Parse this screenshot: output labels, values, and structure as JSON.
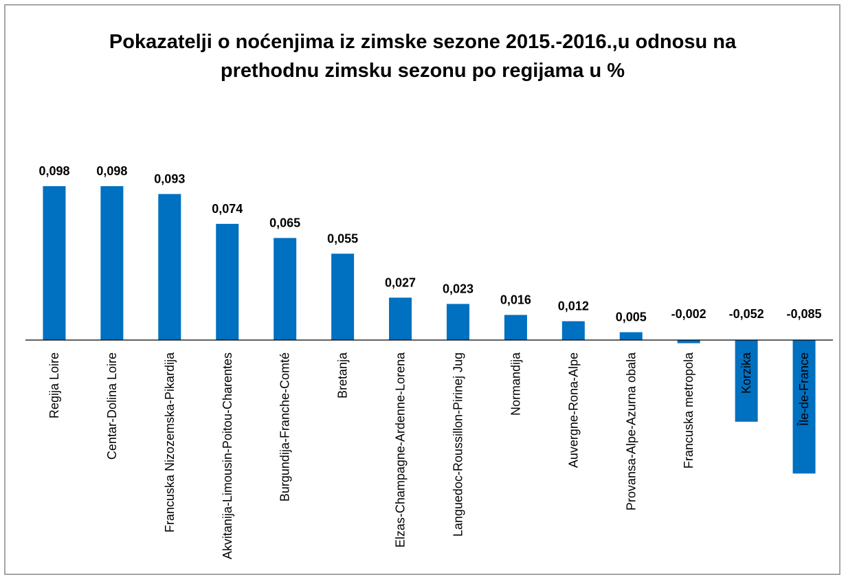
{
  "chart_data": {
    "type": "bar",
    "title": "Pokazatelji o noćenjima iz zimske sezone 2015.-2016.,u odnosu na prethodnu zimsku sezonu po regijama u %",
    "categories": [
      "Regija Loire",
      "Centar-Dolina Loire",
      "Francuska Nizozemska-Pikardija",
      "Akvitanija-Limousin-Poitou-Charentes",
      "Burgundija-Franche-Comté",
      "Bretanja",
      "Elzas-Champagne-Ardenne-Lorena",
      "Languedoc-Roussillon-Pirinej Jug",
      "Normandija",
      "Auvergne-Rona-Alpe",
      "Provansa-Alpe-Azurna obala",
      "Francuska metropola",
      "Korzika",
      "Île-de-France"
    ],
    "values": [
      0.098,
      0.098,
      0.093,
      0.074,
      0.065,
      0.055,
      0.027,
      0.023,
      0.016,
      0.012,
      0.005,
      -0.002,
      -0.052,
      -0.085
    ],
    "value_labels": [
      "0,098",
      "0,098",
      "0,093",
      "0,074",
      "0,065",
      "0,055",
      "0,027",
      "0,023",
      "0,016",
      "0,012",
      "0,005",
      "-0,002",
      "-0,052",
      "-0,085"
    ],
    "color": "#0070c0"
  }
}
